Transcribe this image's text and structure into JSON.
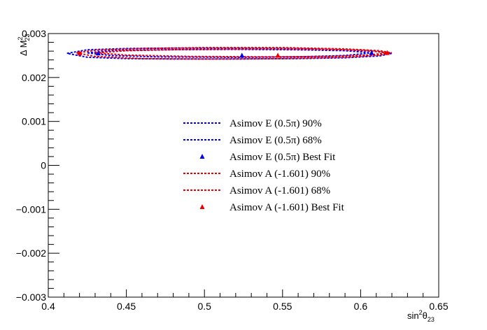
{
  "chart_data": {
    "type": "line",
    "xlabel_main": "sin",
    "xlabel_sup": "2",
    "xlabel_theta": "θ",
    "xlabel_sub": "23",
    "ylabel_main": "Δ M",
    "ylabel_sup": "2",
    "ylabel_sub": "23",
    "xlim": [
      0.4,
      0.65
    ],
    "ylim": [
      -0.003,
      0.003
    ],
    "x_ticks": [
      0.4,
      0.45,
      0.5,
      0.55,
      0.6,
      0.65
    ],
    "x_tick_labels": [
      "0.4",
      "0.45",
      "0.5",
      "0.55",
      "0.6",
      "0.65"
    ],
    "y_ticks": [
      -0.003,
      -0.002,
      -0.001,
      0,
      0.001,
      0.002,
      0.003
    ],
    "y_tick_labels": [
      "−0.003",
      "−0.002",
      "−0.001",
      "0",
      "0.001",
      "0.002",
      "0.003"
    ],
    "grid": false,
    "legend_position": "center",
    "series": [
      {
        "name": "Asimov E (0.5π) 90%",
        "color": "#0000ee",
        "kind": "contour",
        "x": [
          0.412,
          0.425,
          0.45,
          0.48,
          0.52,
          0.56,
          0.59,
          0.612,
          0.62,
          0.612,
          0.59,
          0.56,
          0.52,
          0.48,
          0.45,
          0.425,
          0.412
        ],
        "y": [
          0.00255,
          0.00263,
          0.00266,
          0.00267,
          0.00267,
          0.00266,
          0.00263,
          0.00259,
          0.00255,
          0.00249,
          0.00245,
          0.00243,
          0.00242,
          0.00242,
          0.00243,
          0.00246,
          0.00255
        ]
      },
      {
        "name": "Asimov E (0.5π) 68%",
        "color": "#0000ee",
        "kind": "contour",
        "x": [
          0.425,
          0.44,
          0.47,
          0.52,
          0.56,
          0.59,
          0.607,
          0.59,
          0.56,
          0.52,
          0.47,
          0.44,
          0.425
        ],
        "y": [
          0.00256,
          0.00261,
          0.00263,
          0.00264,
          0.00263,
          0.00261,
          0.00256,
          0.0025,
          0.00247,
          0.00246,
          0.00247,
          0.0025,
          0.00256
        ]
      },
      {
        "name": "Asimov E (0.5π) Best Fit",
        "color": "#0000ee",
        "kind": "marker",
        "x": [
          0.524
        ],
        "y": [
          0.0025
        ]
      },
      {
        "name": "Asimov A (-1.601) 90%",
        "color": "#ee0000",
        "kind": "contour",
        "x": [
          0.418,
          0.43,
          0.46,
          0.5,
          0.55,
          0.59,
          0.612,
          0.62,
          0.612,
          0.59,
          0.55,
          0.5,
          0.46,
          0.43,
          0.418
        ],
        "y": [
          0.00256,
          0.00262,
          0.00266,
          0.00268,
          0.00268,
          0.00265,
          0.00261,
          0.00256,
          0.00251,
          0.00246,
          0.00243,
          0.00242,
          0.00243,
          0.00248,
          0.00256
        ]
      },
      {
        "name": "Asimov A (-1.601) 68%",
        "color": "#ee0000",
        "kind": "contour",
        "x": [
          0.43,
          0.45,
          0.49,
          0.54,
          0.58,
          0.605,
          0.617,
          0.605,
          0.58,
          0.54,
          0.49,
          0.45,
          0.43
        ],
        "y": [
          0.00256,
          0.00261,
          0.00264,
          0.00265,
          0.00264,
          0.00261,
          0.00256,
          0.00251,
          0.00248,
          0.00247,
          0.00248,
          0.00251,
          0.00256
        ]
      },
      {
        "name": "Asimov A (-1.601) Best Fit",
        "color": "#ee0000",
        "kind": "marker",
        "x": [
          0.547
        ],
        "y": [
          0.0025
        ]
      }
    ],
    "extra_markers": [
      {
        "color": "#0000ee",
        "x": 0.432,
        "y": 0.00255
      },
      {
        "color": "#0000ee",
        "x": 0.607,
        "y": 0.00256
      },
      {
        "color": "#ee0000",
        "x": 0.42,
        "y": 0.00255
      },
      {
        "color": "#ee0000",
        "x": 0.617,
        "y": 0.00256
      }
    ]
  }
}
